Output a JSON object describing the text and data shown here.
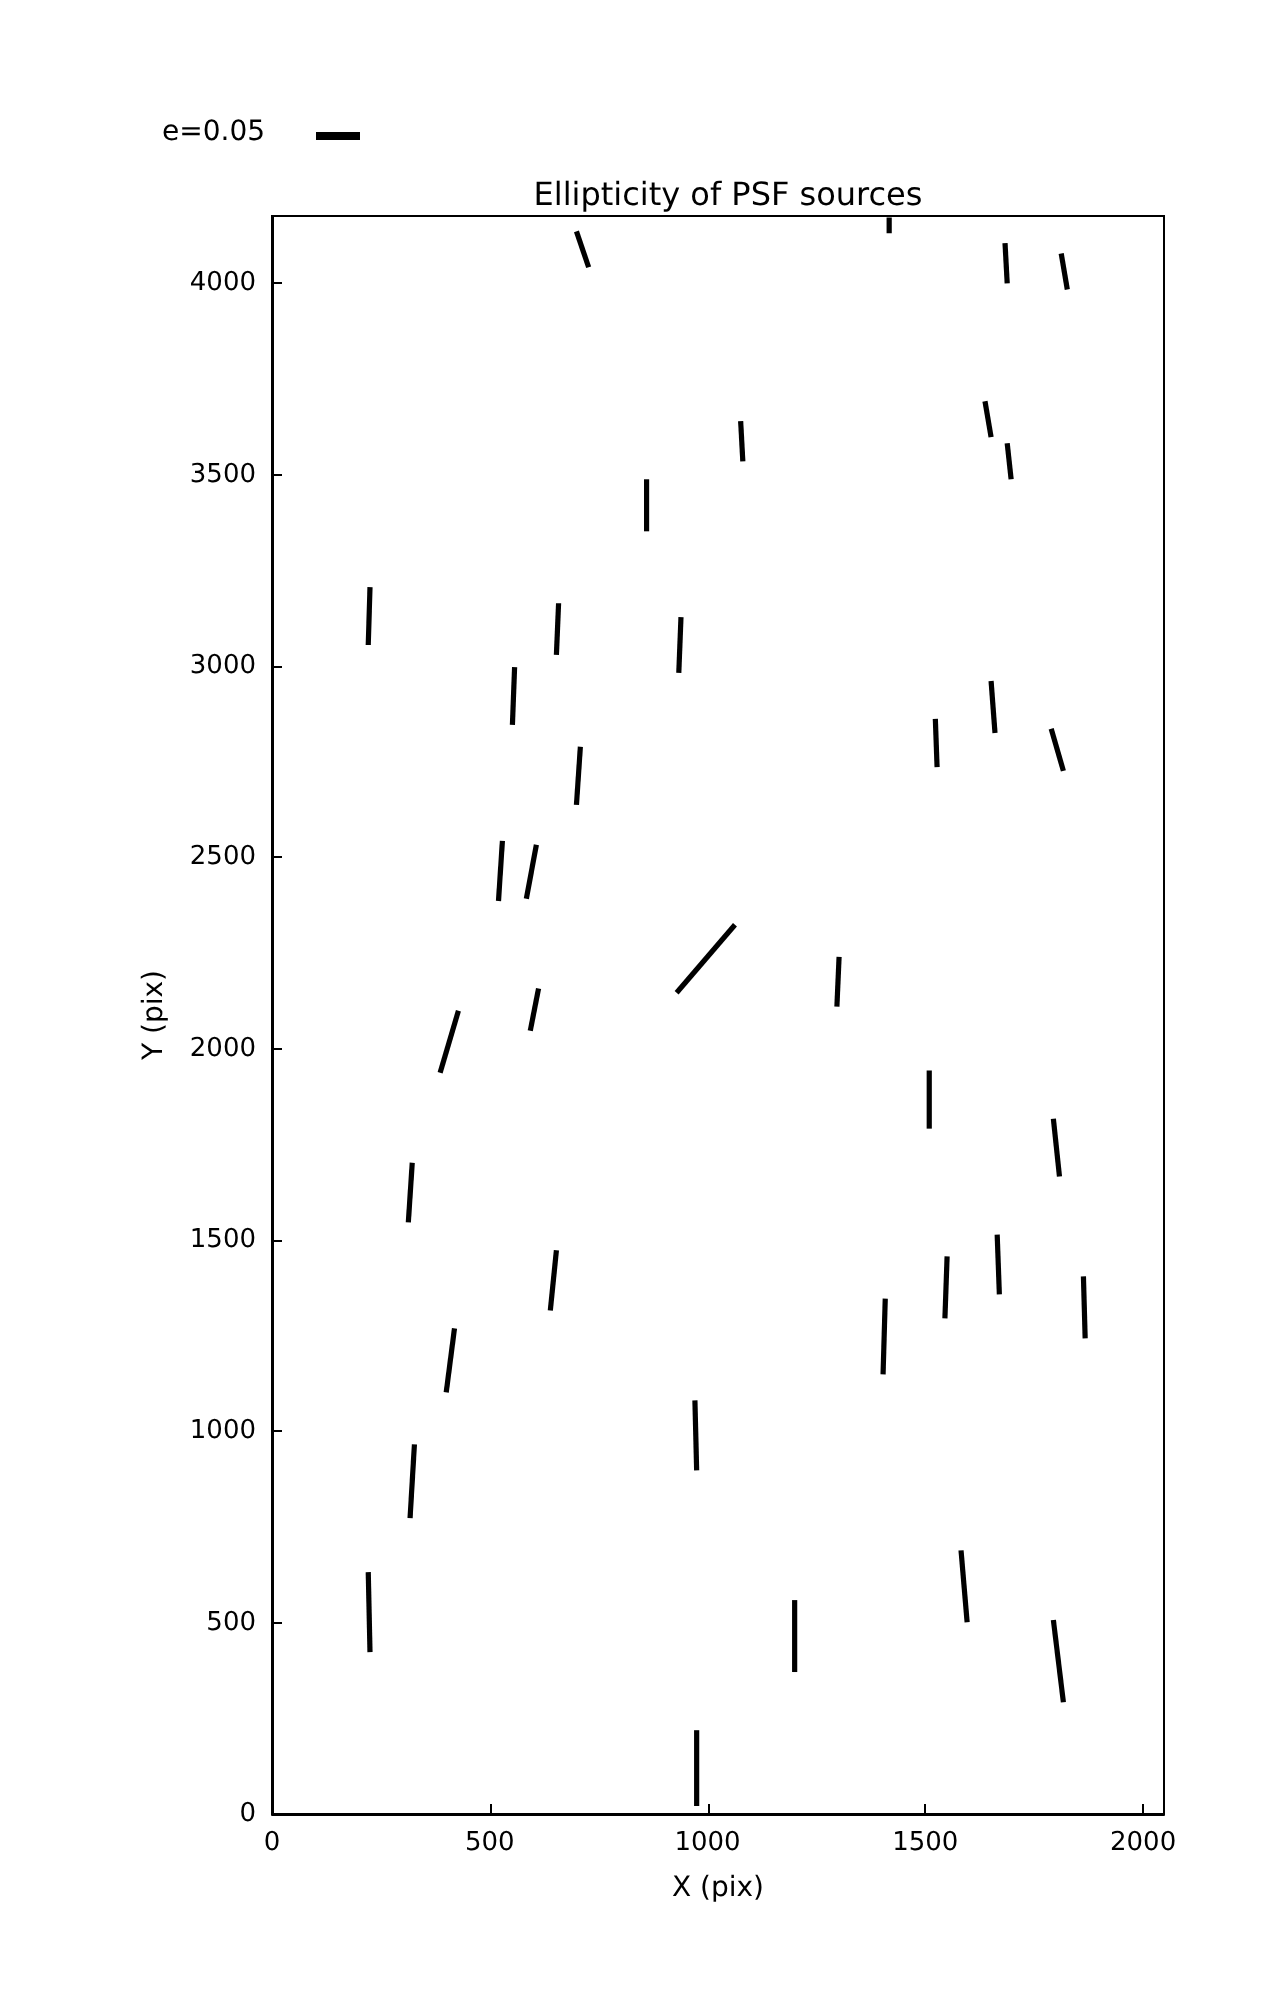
{
  "chart_data": {
    "type": "line",
    "title": "Ellipticity of PSF sources",
    "xlabel": "X (pix)",
    "ylabel": "Y (pix)",
    "annotations": [
      "e=0.05"
    ],
    "xlim": [
      0,
      2048
    ],
    "ylim": [
      0,
      4176
    ],
    "xticks": [
      0,
      500,
      1000,
      1500,
      2000
    ],
    "yticks": [
      0,
      500,
      1000,
      1500,
      2000,
      2500,
      3000,
      3500,
      4000
    ],
    "grid": false,
    "marker": "none",
    "line_style": "solid",
    "series": [
      {
        "color": "#000000",
        "x": [
          699,
          727
        ],
        "values": [
          4136,
          4042
        ]
      },
      {
        "color": "#000000",
        "x": [
          1417,
          1417
        ],
        "values": [
          4172,
          4131
        ]
      },
      {
        "color": "#000000",
        "x": [
          1683,
          1688
        ],
        "values": [
          4105,
          4000
        ]
      },
      {
        "color": "#000000",
        "x": [
          1812,
          1826
        ],
        "values": [
          4078,
          3984
        ]
      },
      {
        "color": "#000000",
        "x": [
          1076,
          1081
        ],
        "values": [
          3640,
          3535
        ]
      },
      {
        "color": "#000000",
        "x": [
          860,
          860
        ],
        "values": [
          3488,
          3352
        ]
      },
      {
        "color": "#000000",
        "x": [
          1637,
          1651
        ],
        "values": [
          3692,
          3598
        ]
      },
      {
        "color": "#000000",
        "x": [
          1688,
          1697
        ],
        "values": [
          3582,
          3488
        ]
      },
      {
        "color": "#000000",
        "x": [
          225,
          221
        ],
        "values": [
          3206,
          3055
        ]
      },
      {
        "color": "#000000",
        "x": [
          658,
          653
        ],
        "values": [
          3164,
          3029
        ]
      },
      {
        "color": "#000000",
        "x": [
          939,
          934
        ],
        "values": [
          3128,
          2982
        ]
      },
      {
        "color": "#000000",
        "x": [
          557,
          552
        ],
        "values": [
          2997,
          2846
        ]
      },
      {
        "color": "#000000",
        "x": [
          1651,
          1660
        ],
        "values": [
          2961,
          2825
        ]
      },
      {
        "color": "#000000",
        "x": [
          1523,
          1527
        ],
        "values": [
          2862,
          2736
        ]
      },
      {
        "color": "#000000",
        "x": [
          1789,
          1817
        ],
        "values": [
          2836,
          2726
        ]
      },
      {
        "color": "#000000",
        "x": [
          708,
          699
        ],
        "values": [
          2789,
          2637
        ]
      },
      {
        "color": "#000000",
        "x": [
          529,
          520
        ],
        "values": [
          2543,
          2386
        ]
      },
      {
        "color": "#000000",
        "x": [
          607,
          584
        ],
        "values": [
          2533,
          2392
        ]
      },
      {
        "color": "#000000",
        "x": [
          929,
          1063
        ],
        "values": [
          2146,
          2324
        ]
      },
      {
        "color": "#000000",
        "x": [
          1302,
          1297
        ],
        "values": [
          2240,
          2110
        ]
      },
      {
        "color": "#000000",
        "x": [
          612,
          593
        ],
        "values": [
          2157,
          2047
        ]
      },
      {
        "color": "#000000",
        "x": [
          428,
          386
        ],
        "values": [
          2099,
          1937
        ]
      },
      {
        "color": "#000000",
        "x": [
          1509,
          1509
        ],
        "values": [
          1943,
          1791
        ]
      },
      {
        "color": "#000000",
        "x": [
          1794,
          1808
        ],
        "values": [
          1817,
          1666
        ]
      },
      {
        "color": "#000000",
        "x": [
          322,
          313
        ],
        "values": [
          1702,
          1546
        ]
      },
      {
        "color": "#000000",
        "x": [
          1665,
          1670
        ],
        "values": [
          1514,
          1358
        ]
      },
      {
        "color": "#000000",
        "x": [
          1550,
          1545
        ],
        "values": [
          1457,
          1295
        ]
      },
      {
        "color": "#000000",
        "x": [
          653,
          639
        ],
        "values": [
          1473,
          1316
        ]
      },
      {
        "color": "#000000",
        "x": [
          1408,
          1403
        ],
        "values": [
          1347,
          1149
        ]
      },
      {
        "color": "#000000",
        "x": [
          1863,
          1867
        ],
        "values": [
          1405,
          1243
        ]
      },
      {
        "color": "#000000",
        "x": [
          419,
          400
        ],
        "values": [
          1269,
          1102
        ]
      },
      {
        "color": "#000000",
        "x": [
          971,
          975
        ],
        "values": [
          1081,
          898
        ]
      },
      {
        "color": "#000000",
        "x": [
          327,
          317
        ],
        "values": [
          966,
          773
        ]
      },
      {
        "color": "#000000",
        "x": [
          221,
          225
        ],
        "values": [
          632,
          423
        ]
      },
      {
        "color": "#000000",
        "x": [
          1582,
          1596
        ],
        "values": [
          689,
          501
        ]
      },
      {
        "color": "#000000",
        "x": [
          1200,
          1200
        ],
        "values": [
          559,
          371
        ]
      },
      {
        "color": "#000000",
        "x": [
          1794,
          1817
        ],
        "values": [
          507,
          292
        ]
      },
      {
        "color": "#000000",
        "x": [
          975,
          975
        ],
        "values": [
          219,
          21
        ]
      }
    ]
  }
}
